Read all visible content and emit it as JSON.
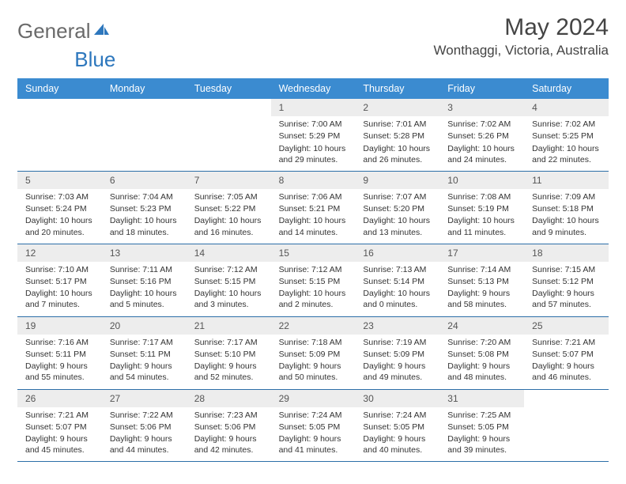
{
  "brand": {
    "part1": "General",
    "part2": "Blue"
  },
  "title": "May 2024",
  "location": "Wonthaggi, Victoria, Australia",
  "colors": {
    "header_bg": "#3b8bd0",
    "row_border": "#2d6fa8",
    "date_bg": "#ededed",
    "logo_gray": "#6a6a6a",
    "logo_blue": "#2d77bd"
  },
  "day_names": [
    "Sunday",
    "Monday",
    "Tuesday",
    "Wednesday",
    "Thursday",
    "Friday",
    "Saturday"
  ],
  "weeks": [
    [
      {
        "empty": true
      },
      {
        "empty": true
      },
      {
        "empty": true
      },
      {
        "date": "1",
        "sunrise": "7:00 AM",
        "sunset": "5:29 PM",
        "daylight": "10 hours and 29 minutes."
      },
      {
        "date": "2",
        "sunrise": "7:01 AM",
        "sunset": "5:28 PM",
        "daylight": "10 hours and 26 minutes."
      },
      {
        "date": "3",
        "sunrise": "7:02 AM",
        "sunset": "5:26 PM",
        "daylight": "10 hours and 24 minutes."
      },
      {
        "date": "4",
        "sunrise": "7:02 AM",
        "sunset": "5:25 PM",
        "daylight": "10 hours and 22 minutes."
      }
    ],
    [
      {
        "date": "5",
        "sunrise": "7:03 AM",
        "sunset": "5:24 PM",
        "daylight": "10 hours and 20 minutes."
      },
      {
        "date": "6",
        "sunrise": "7:04 AM",
        "sunset": "5:23 PM",
        "daylight": "10 hours and 18 minutes."
      },
      {
        "date": "7",
        "sunrise": "7:05 AM",
        "sunset": "5:22 PM",
        "daylight": "10 hours and 16 minutes."
      },
      {
        "date": "8",
        "sunrise": "7:06 AM",
        "sunset": "5:21 PM",
        "daylight": "10 hours and 14 minutes."
      },
      {
        "date": "9",
        "sunrise": "7:07 AM",
        "sunset": "5:20 PM",
        "daylight": "10 hours and 13 minutes."
      },
      {
        "date": "10",
        "sunrise": "7:08 AM",
        "sunset": "5:19 PM",
        "daylight": "10 hours and 11 minutes."
      },
      {
        "date": "11",
        "sunrise": "7:09 AM",
        "sunset": "5:18 PM",
        "daylight": "10 hours and 9 minutes."
      }
    ],
    [
      {
        "date": "12",
        "sunrise": "7:10 AM",
        "sunset": "5:17 PM",
        "daylight": "10 hours and 7 minutes."
      },
      {
        "date": "13",
        "sunrise": "7:11 AM",
        "sunset": "5:16 PM",
        "daylight": "10 hours and 5 minutes."
      },
      {
        "date": "14",
        "sunrise": "7:12 AM",
        "sunset": "5:15 PM",
        "daylight": "10 hours and 3 minutes."
      },
      {
        "date": "15",
        "sunrise": "7:12 AM",
        "sunset": "5:15 PM",
        "daylight": "10 hours and 2 minutes."
      },
      {
        "date": "16",
        "sunrise": "7:13 AM",
        "sunset": "5:14 PM",
        "daylight": "10 hours and 0 minutes."
      },
      {
        "date": "17",
        "sunrise": "7:14 AM",
        "sunset": "5:13 PM",
        "daylight": "9 hours and 58 minutes."
      },
      {
        "date": "18",
        "sunrise": "7:15 AM",
        "sunset": "5:12 PM",
        "daylight": "9 hours and 57 minutes."
      }
    ],
    [
      {
        "date": "19",
        "sunrise": "7:16 AM",
        "sunset": "5:11 PM",
        "daylight": "9 hours and 55 minutes."
      },
      {
        "date": "20",
        "sunrise": "7:17 AM",
        "sunset": "5:11 PM",
        "daylight": "9 hours and 54 minutes."
      },
      {
        "date": "21",
        "sunrise": "7:17 AM",
        "sunset": "5:10 PM",
        "daylight": "9 hours and 52 minutes."
      },
      {
        "date": "22",
        "sunrise": "7:18 AM",
        "sunset": "5:09 PM",
        "daylight": "9 hours and 50 minutes."
      },
      {
        "date": "23",
        "sunrise": "7:19 AM",
        "sunset": "5:09 PM",
        "daylight": "9 hours and 49 minutes."
      },
      {
        "date": "24",
        "sunrise": "7:20 AM",
        "sunset": "5:08 PM",
        "daylight": "9 hours and 48 minutes."
      },
      {
        "date": "25",
        "sunrise": "7:21 AM",
        "sunset": "5:07 PM",
        "daylight": "9 hours and 46 minutes."
      }
    ],
    [
      {
        "date": "26",
        "sunrise": "7:21 AM",
        "sunset": "5:07 PM",
        "daylight": "9 hours and 45 minutes."
      },
      {
        "date": "27",
        "sunrise": "7:22 AM",
        "sunset": "5:06 PM",
        "daylight": "9 hours and 44 minutes."
      },
      {
        "date": "28",
        "sunrise": "7:23 AM",
        "sunset": "5:06 PM",
        "daylight": "9 hours and 42 minutes."
      },
      {
        "date": "29",
        "sunrise": "7:24 AM",
        "sunset": "5:05 PM",
        "daylight": "9 hours and 41 minutes."
      },
      {
        "date": "30",
        "sunrise": "7:24 AM",
        "sunset": "5:05 PM",
        "daylight": "9 hours and 40 minutes."
      },
      {
        "date": "31",
        "sunrise": "7:25 AM",
        "sunset": "5:05 PM",
        "daylight": "9 hours and 39 minutes."
      },
      {
        "empty": true
      }
    ]
  ],
  "labels": {
    "sunrise_prefix": "Sunrise: ",
    "sunset_prefix": "Sunset: ",
    "daylight_prefix": "Daylight: "
  }
}
